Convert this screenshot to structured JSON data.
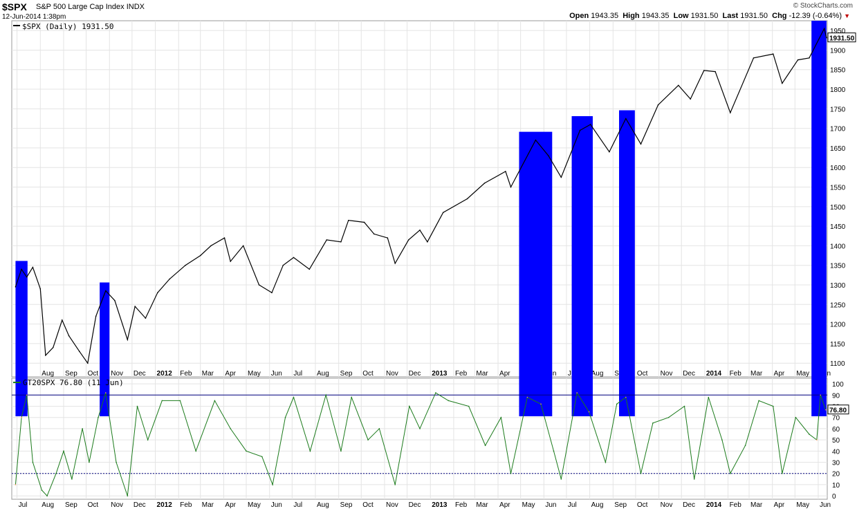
{
  "header": {
    "symbol": "$SPX",
    "description": "S&P 500 Large Cap Index",
    "exchange": "INDX",
    "datestamp": "12-Jun-2014 1:38pm",
    "brand": "© StockCharts.com",
    "open_label": "Open",
    "open": "1943.35",
    "high_label": "High",
    "high": "1943.35",
    "low_label": "Low",
    "low": "1931.50",
    "last_label": "Last",
    "last": "1931.50",
    "chg_label": "Chg",
    "chg": "-12.39 (-0.64%)"
  },
  "colors": {
    "highlight": "#0000ff",
    "price": "#000000",
    "price_highlight": "#ffff00",
    "indicator": "#1a7a1a",
    "indicator_highlight": "#ff9955",
    "grid": "#e4e4e4",
    "line90": "#000080",
    "line20": "#000080"
  },
  "chart_data": [
    {
      "type": "line",
      "legend": "$SPX (Daily) 1931.50",
      "last_value_label": "1931.50",
      "ylim": [
        1065,
        1975
      ],
      "yticks": [
        1100,
        1150,
        1200,
        1250,
        1300,
        1350,
        1400,
        1450,
        1500,
        1550,
        1600,
        1650,
        1700,
        1750,
        1800,
        1850,
        1900,
        1950
      ],
      "x": [
        "2011-06-29",
        "2011-07-07",
        "2011-07-14",
        "2011-07-22",
        "2011-08-01",
        "2011-08-08",
        "2011-08-18",
        "2011-08-30",
        "2011-09-08",
        "2011-09-22",
        "2011-10-03",
        "2011-10-14",
        "2011-10-27",
        "2011-11-08",
        "2011-11-25",
        "2011-12-05",
        "2011-12-19",
        "2012-01-04",
        "2012-01-20",
        "2012-02-10",
        "2012-03-01",
        "2012-03-15",
        "2012-04-02",
        "2012-04-10",
        "2012-04-27",
        "2012-05-18",
        "2012-06-04",
        "2012-06-19",
        "2012-07-03",
        "2012-07-24",
        "2012-08-16",
        "2012-09-04",
        "2012-09-14",
        "2012-10-05",
        "2012-10-18",
        "2012-11-05",
        "2012-11-15",
        "2012-12-03",
        "2012-12-18",
        "2012-12-28",
        "2013-01-18",
        "2013-02-19",
        "2013-03-14",
        "2013-04-11",
        "2013-04-18",
        "2013-05-21",
        "2013-06-07",
        "2013-06-24",
        "2013-07-19",
        "2013-08-02",
        "2013-08-27",
        "2013-09-18",
        "2013-10-08",
        "2013-10-31",
        "2013-11-27",
        "2013-12-13",
        "2013-12-31",
        "2014-01-15",
        "2014-02-04",
        "2014-03-07",
        "2014-04-02",
        "2014-04-14",
        "2014-05-05",
        "2014-05-20",
        "2014-06-09",
        "2014-06-12"
      ],
      "values": [
        1295,
        1340,
        1320,
        1345,
        1290,
        1120,
        1140,
        1210,
        1170,
        1130,
        1100,
        1220,
        1285,
        1260,
        1160,
        1245,
        1215,
        1280,
        1315,
        1350,
        1375,
        1400,
        1420,
        1360,
        1400,
        1300,
        1280,
        1350,
        1370,
        1340,
        1415,
        1410,
        1465,
        1460,
        1430,
        1420,
        1355,
        1415,
        1440,
        1410,
        1485,
        1520,
        1560,
        1590,
        1550,
        1670,
        1630,
        1575,
        1695,
        1710,
        1640,
        1725,
        1660,
        1760,
        1810,
        1775,
        1848,
        1845,
        1740,
        1880,
        1890,
        1815,
        1875,
        1880,
        1955,
        1931.5
      ],
      "highlight_ranges": [
        [
          "2011-06-29",
          "2011-07-15"
        ],
        [
          "2011-10-19",
          "2011-11-01"
        ],
        [
          "2013-04-29",
          "2013-06-12"
        ],
        [
          "2013-07-08",
          "2013-08-05"
        ],
        [
          "2013-09-09",
          "2013-09-30"
        ],
        [
          "2014-05-23",
          "2014-06-12"
        ]
      ]
    },
    {
      "type": "line",
      "legend": "GT20SPX 76.80 (11 Jun)",
      "last_value_label": "76.80",
      "ylim": [
        -3,
        105
      ],
      "yticks": [
        0,
        10,
        20,
        30,
        40,
        50,
        60,
        70,
        80,
        90,
        100
      ],
      "reference_lines": [
        90,
        20
      ],
      "x": [
        "2011-06-29",
        "2011-07-07",
        "2011-07-14",
        "2011-07-22",
        "2011-08-03",
        "2011-08-10",
        "2011-08-22",
        "2011-09-01",
        "2011-09-12",
        "2011-09-26",
        "2011-10-05",
        "2011-10-17",
        "2011-10-27",
        "2011-11-10",
        "2011-11-25",
        "2011-12-08",
        "2011-12-22",
        "2012-01-10",
        "2012-02-03",
        "2012-02-24",
        "2012-03-20",
        "2012-04-10",
        "2012-05-01",
        "2012-05-22",
        "2012-06-05",
        "2012-06-22",
        "2012-07-03",
        "2012-07-25",
        "2012-08-15",
        "2012-09-04",
        "2012-09-18",
        "2012-10-10",
        "2012-10-25",
        "2012-11-15",
        "2012-12-04",
        "2012-12-18",
        "2013-01-08",
        "2013-01-25",
        "2013-02-21",
        "2013-03-15",
        "2013-04-05",
        "2013-04-18",
        "2013-05-10",
        "2013-05-28",
        "2013-06-14",
        "2013-06-24",
        "2013-07-15",
        "2013-07-31",
        "2013-08-22",
        "2013-09-06",
        "2013-09-18",
        "2013-10-08",
        "2013-10-24",
        "2013-11-14",
        "2013-12-05",
        "2013-12-18",
        "2014-01-06",
        "2014-01-24",
        "2014-02-04",
        "2014-02-24",
        "2014-03-14",
        "2014-04-02",
        "2014-04-14",
        "2014-05-02",
        "2014-05-20",
        "2014-05-30",
        "2014-06-04",
        "2014-06-11"
      ],
      "values": [
        10,
        70,
        90,
        30,
        5,
        0,
        20,
        40,
        15,
        60,
        30,
        70,
        92,
        30,
        0,
        80,
        50,
        85,
        85,
        40,
        85,
        60,
        40,
        35,
        10,
        70,
        88,
        40,
        90,
        40,
        88,
        50,
        60,
        10,
        80,
        60,
        92,
        85,
        80,
        45,
        70,
        20,
        88,
        82,
        40,
        15,
        92,
        75,
        30,
        82,
        88,
        20,
        65,
        70,
        80,
        15,
        88,
        50,
        20,
        45,
        85,
        80,
        20,
        70,
        55,
        50,
        90,
        76.8
      ]
    }
  ],
  "axes": {
    "month_labels": [
      {
        "text": "Jul",
        "date": "2011-07-01"
      },
      {
        "text": "Aug",
        "date": "2011-08-01"
      },
      {
        "text": "Sep",
        "date": "2011-09-01"
      },
      {
        "text": "Oct",
        "date": "2011-10-01"
      },
      {
        "text": "Nov",
        "date": "2011-11-01"
      },
      {
        "text": "Dec",
        "date": "2011-12-01"
      },
      {
        "text": "2012",
        "date": "2012-01-01",
        "year": true
      },
      {
        "text": "Feb",
        "date": "2012-02-01"
      },
      {
        "text": "Mar",
        "date": "2012-03-01"
      },
      {
        "text": "Apr",
        "date": "2012-04-01"
      },
      {
        "text": "May",
        "date": "2012-05-01"
      },
      {
        "text": "Jun",
        "date": "2012-06-01"
      },
      {
        "text": "Jul",
        "date": "2012-07-01"
      },
      {
        "text": "Aug",
        "date": "2012-08-01"
      },
      {
        "text": "Sep",
        "date": "2012-09-01"
      },
      {
        "text": "Oct",
        "date": "2012-10-01"
      },
      {
        "text": "Nov",
        "date": "2012-11-01"
      },
      {
        "text": "Dec",
        "date": "2012-12-01"
      },
      {
        "text": "2013",
        "date": "2013-01-01",
        "year": true
      },
      {
        "text": "Feb",
        "date": "2013-02-01"
      },
      {
        "text": "Mar",
        "date": "2013-03-01"
      },
      {
        "text": "Apr",
        "date": "2013-04-01"
      },
      {
        "text": "May",
        "date": "2013-05-01"
      },
      {
        "text": "Jun",
        "date": "2013-06-01"
      },
      {
        "text": "Jul",
        "date": "2013-07-01"
      },
      {
        "text": "Aug",
        "date": "2013-08-01"
      },
      {
        "text": "Sep",
        "date": "2013-09-01"
      },
      {
        "text": "Oct",
        "date": "2013-10-01"
      },
      {
        "text": "Nov",
        "date": "2013-11-01"
      },
      {
        "text": "Dec",
        "date": "2013-12-01"
      },
      {
        "text": "2014",
        "date": "2014-01-01",
        "year": true
      },
      {
        "text": "Feb",
        "date": "2014-02-01"
      },
      {
        "text": "Mar",
        "date": "2014-03-01"
      },
      {
        "text": "Apr",
        "date": "2014-04-01"
      },
      {
        "text": "May",
        "date": "2014-05-01"
      },
      {
        "text": "Jun",
        "date": "2014-06-01"
      }
    ],
    "date_range": [
      "2011-06-24",
      "2014-06-13"
    ]
  }
}
